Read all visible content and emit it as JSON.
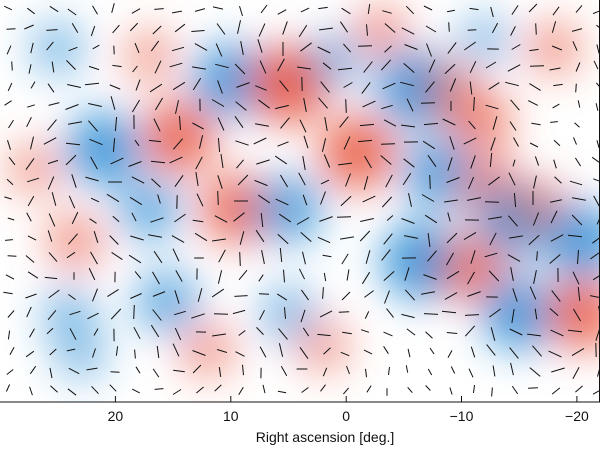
{
  "chart_data": {
    "type": "heatmap",
    "title": "",
    "xlabel": "Right ascension [deg.]",
    "ylabel": "",
    "x_ticks": [
      20,
      10,
      0,
      -10,
      -20
    ],
    "x_tick_labels": [
      "20",
      "10",
      "0",
      "−10",
      "−20"
    ],
    "xlim": [
      30,
      -22
    ],
    "grid": false,
    "legend": "none",
    "colors": {
      "positive": "#e8553d",
      "negative": "#2f8fd6",
      "neutral": "#ffffff",
      "vectors": "#111111"
    },
    "blobs": [
      {
        "ra": 27,
        "dec": 0.58,
        "sign": 1,
        "amp": 0.25
      },
      {
        "ra": 25,
        "dec": 0.88,
        "sign": -1,
        "amp": 0.3
      },
      {
        "ra": 23.5,
        "dec": 0.4,
        "sign": 1,
        "amp": 0.35
      },
      {
        "ra": 21,
        "dec": 0.63,
        "sign": -1,
        "amp": 0.85
      },
      {
        "ra": 14.5,
        "dec": 0.66,
        "sign": 1,
        "amp": 0.8
      },
      {
        "ra": 17,
        "dec": 0.86,
        "sign": 1,
        "amp": 0.25
      },
      {
        "ra": 10,
        "dec": 0.8,
        "sign": -1,
        "amp": 0.85
      },
      {
        "ra": 5,
        "dec": 0.79,
        "sign": 1,
        "amp": 0.95
      },
      {
        "ra": 1,
        "dec": 0.85,
        "sign": -1,
        "amp": 0.35
      },
      {
        "ra": 24,
        "dec": 0.22,
        "sign": -1,
        "amp": 0.3
      },
      {
        "ra": 17,
        "dec": 0.48,
        "sign": -1,
        "amp": 0.55
      },
      {
        "ra": 15.5,
        "dec": 0.25,
        "sign": -1,
        "amp": 0.55
      },
      {
        "ra": 9.5,
        "dec": 0.48,
        "sign": 1,
        "amp": 0.75
      },
      {
        "ra": 5,
        "dec": 0.48,
        "sign": -1,
        "amp": 0.7
      },
      {
        "ra": 5,
        "dec": 0.22,
        "sign": -1,
        "amp": 0.35
      },
      {
        "ra": -1,
        "dec": 0.62,
        "sign": 1,
        "amp": 0.85
      },
      {
        "ra": -6,
        "dec": 0.78,
        "sign": -1,
        "amp": 0.9
      },
      {
        "ra": -9,
        "dec": 0.78,
        "sign": 1,
        "amp": 0.3
      },
      {
        "ra": -11.5,
        "dec": 0.7,
        "sign": 1,
        "amp": 0.55
      },
      {
        "ra": -8,
        "dec": 0.57,
        "sign": -1,
        "amp": 0.75
      },
      {
        "ra": -12.5,
        "dec": 0.53,
        "sign": 1,
        "amp": 0.55
      },
      {
        "ra": -14.5,
        "dec": 0.45,
        "sign": -1,
        "amp": 0.8
      },
      {
        "ra": -17,
        "dec": 0.48,
        "sign": 1,
        "amp": 0.35
      },
      {
        "ra": -6.5,
        "dec": 0.35,
        "sign": -1,
        "amp": 0.95
      },
      {
        "ra": -11,
        "dec": 0.33,
        "sign": 1,
        "amp": 0.65
      },
      {
        "ra": -15,
        "dec": 0.22,
        "sign": -1,
        "amp": 0.85
      },
      {
        "ra": -20.5,
        "dec": 0.22,
        "sign": 1,
        "amp": 0.8
      },
      {
        "ra": -20.5,
        "dec": 0.4,
        "sign": -1,
        "amp": 0.85
      },
      {
        "ra": 23,
        "dec": 0.12,
        "sign": -1,
        "amp": 0.25
      },
      {
        "ra": 12,
        "dec": 0.13,
        "sign": 1,
        "amp": 0.3
      },
      {
        "ra": 2,
        "dec": 0.14,
        "sign": 1,
        "amp": 0.25
      },
      {
        "ra": -3,
        "dec": 0.92,
        "sign": 1,
        "amp": 0.3
      },
      {
        "ra": -12,
        "dec": 0.9,
        "sign": -1,
        "amp": 0.25
      },
      {
        "ra": -18,
        "dec": 0.88,
        "sign": 1,
        "amp": 0.3
      }
    ]
  }
}
